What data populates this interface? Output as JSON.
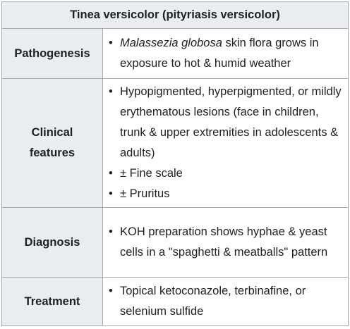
{
  "table": {
    "title": "Tinea versicolor (pityriasis versicolor)",
    "rows": [
      {
        "header": "Pathogenesis",
        "items": [
          {
            "italic": "Malassezia globosa",
            "rest": " skin flora grows in exposure to hot & humid weather"
          }
        ]
      },
      {
        "header_line1": "Clinical",
        "header_line2": "features",
        "items": [
          {
            "text": "Hypopigmented, hyperpigmented, or mildly erythematous lesions (face in children, trunk & upper extremities in adolescents & adults)"
          },
          {
            "text": "± Fine scale"
          },
          {
            "text": "± Pruritus"
          }
        ]
      },
      {
        "header": "Diagnosis",
        "items": [
          {
            "text": "KOH preparation shows hyphae & yeast cells in a \"spaghetti & meatballs\" pattern"
          }
        ]
      },
      {
        "header": "Treatment",
        "items": [
          {
            "text": "Topical ketoconazole, terbinafine, or selenium sulfide"
          }
        ]
      }
    ]
  }
}
